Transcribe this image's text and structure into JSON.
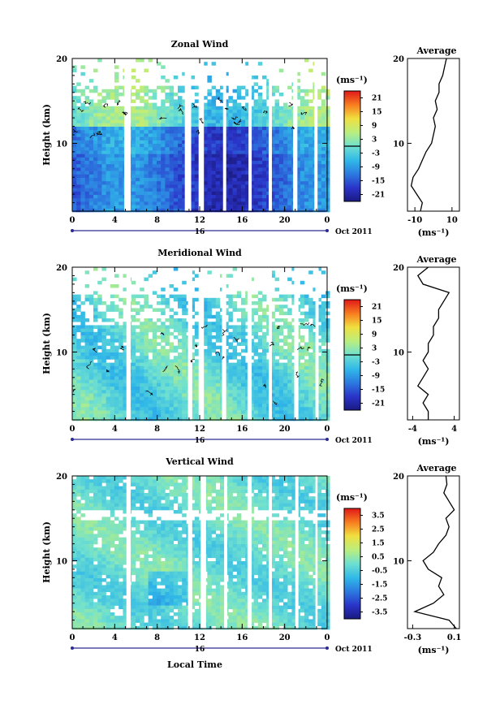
{
  "figure": {
    "xlabel": "Local Time",
    "date_label": "16",
    "month_label": "Oct 2011",
    "time_ticks": [
      "0",
      "4",
      "8",
      "12",
      "16",
      "20",
      "0"
    ],
    "height_ticks": [
      "10",
      "20"
    ],
    "ylabel": "Height (km)",
    "units": "(ms⁻¹)",
    "avg_units": "(ms⁻¹)",
    "avg_title": "Average"
  },
  "chart_data": [
    {
      "type": "heatmap",
      "id": "zonal",
      "title": "Zonal Wind",
      "xlabel": "",
      "ylabel": "Height (km)",
      "xlim": [
        0,
        24
      ],
      "ylim": [
        2,
        20
      ],
      "x_ticks": [
        "0",
        "4",
        "8",
        "12",
        "16",
        "20",
        "0"
      ],
      "y_ticks": [
        10,
        20
      ],
      "colorbar": {
        "label": "(ms⁻¹)",
        "ticks": [
          "21",
          "15",
          "9",
          "3",
          "-3",
          "-9",
          "-15",
          "-21"
        ],
        "range": [
          -24,
          24
        ]
      },
      "data_gaps_hours": [
        [
          4.9,
          5.5
        ],
        [
          10.6,
          11.2
        ],
        [
          11.9,
          12.4
        ],
        [
          14.2,
          14.5
        ],
        [
          16.6,
          16.9
        ],
        [
          18.5,
          18.8
        ],
        [
          20.8,
          21.2
        ],
        [
          22.8,
          23.1
        ]
      ],
      "profile": {
        "title": "Average",
        "xlabel": "(ms⁻¹)",
        "x_ticks": [
          "-10",
          "10"
        ],
        "xlim": [
          -14,
          14
        ],
        "heights": [
          2,
          3,
          4,
          5,
          6,
          7,
          8,
          9,
          10,
          11,
          12,
          13,
          14,
          15,
          16,
          17,
          18,
          19,
          20
        ],
        "values": [
          -7,
          -6,
          -9,
          -12,
          -11,
          -8,
          -6,
          -4,
          -1,
          0,
          1,
          0,
          2,
          1,
          3,
          3,
          5,
          6,
          7
        ]
      }
    },
    {
      "type": "heatmap",
      "id": "meridional",
      "title": "Meridional Wind",
      "xlabel": "",
      "ylabel": "Height (km)",
      "xlim": [
        0,
        24
      ],
      "ylim": [
        2,
        20
      ],
      "x_ticks": [
        "0",
        "4",
        "8",
        "12",
        "16",
        "20",
        "0"
      ],
      "y_ticks": [
        10,
        20
      ],
      "colorbar": {
        "label": "(ms⁻¹)",
        "ticks": [
          "21",
          "15",
          "9",
          "3",
          "-3",
          "-9",
          "-15",
          "-21"
        ],
        "range": [
          -24,
          24
        ]
      },
      "data_gaps_hours": [
        [
          5.1,
          5.5
        ],
        [
          10.9,
          11.3
        ],
        [
          11.9,
          12.4
        ],
        [
          14.1,
          14.5
        ],
        [
          16.5,
          16.9
        ],
        [
          18.5,
          18.8
        ],
        [
          20.9,
          21.3
        ],
        [
          22.9,
          23.2
        ]
      ],
      "profile": {
        "title": "Average",
        "xlabel": "(ms⁻¹)",
        "x_ticks": [
          "-4",
          "4"
        ],
        "xlim": [
          -5,
          5
        ],
        "heights": [
          2,
          3,
          4,
          5,
          6,
          7,
          8,
          9,
          10,
          11,
          12,
          13,
          14,
          15,
          16,
          17,
          18,
          19,
          20
        ],
        "values": [
          -1,
          -1,
          -2,
          -1,
          -3,
          -2,
          -1,
          -2,
          -1,
          -1,
          0,
          0,
          1,
          1,
          2,
          3,
          -2,
          -3,
          -1
        ]
      }
    },
    {
      "type": "heatmap",
      "id": "vertical",
      "title": "Vertical Wind",
      "xlabel": "Local Time",
      "ylabel": "Height (km)",
      "xlim": [
        0,
        24
      ],
      "ylim": [
        2,
        20
      ],
      "x_ticks": [
        "0",
        "4",
        "8",
        "12",
        "16",
        "20",
        "0"
      ],
      "y_ticks": [
        10,
        20
      ],
      "colorbar": {
        "label": "(ms⁻¹)",
        "ticks": [
          "3.5",
          "2.5",
          "1.5",
          "0.5",
          "-0.5",
          "-1.5",
          "-2.5",
          "-3.5"
        ],
        "range": [
          -4,
          4
        ]
      },
      "data_gaps_hours": [
        [
          5.1,
          5.5
        ],
        [
          10.9,
          11.3
        ],
        [
          12.1,
          12.6
        ],
        [
          14.3,
          14.6
        ],
        [
          16.5,
          16.9
        ],
        [
          18.5,
          18.8
        ],
        [
          21.0,
          21.3
        ],
        [
          22.9,
          23.1
        ]
      ],
      "profile": {
        "title": "Average",
        "xlabel": "(ms⁻¹)",
        "x_ticks": [
          "-0.3",
          "0.1"
        ],
        "xlim": [
          -0.35,
          0.15
        ],
        "heights": [
          2,
          3,
          4,
          5,
          6,
          7,
          8,
          9,
          10,
          11,
          12,
          13,
          14,
          15,
          16,
          17,
          18,
          19,
          20
        ],
        "values": [
          0.12,
          0.05,
          -0.28,
          -0.1,
          0.0,
          -0.05,
          -0.02,
          -0.15,
          -0.2,
          -0.1,
          -0.05,
          0.02,
          0.05,
          0.02,
          0.1,
          0.05,
          0.0,
          0.03,
          0.02
        ]
      }
    }
  ]
}
